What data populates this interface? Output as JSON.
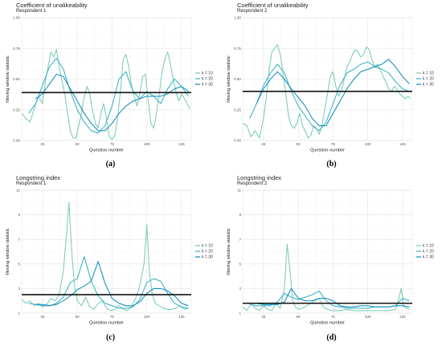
{
  "chart_data": [
    {
      "type": "line",
      "panel": "a",
      "caption": "(a)",
      "title": "Coefficient of unalikeability",
      "subtitle": "Respondent 1",
      "xlabel": "Question number",
      "ylabel": "Moving window statistic",
      "xlim": [
        10,
        132
      ],
      "ylim": [
        0,
        1
      ],
      "xticks": [
        25,
        50,
        75,
        100,
        125
      ],
      "yticks": [
        0,
        0.25,
        0.5,
        0.75,
        1
      ],
      "ytick_labels": [
        "0.00",
        "0.25",
        "0.50",
        "0.75",
        "1.00"
      ],
      "hline": 0.39,
      "legend_position": "right",
      "series": [
        {
          "name": "k = 10",
          "color": "#7fcdbb",
          "x": [
            10,
            13,
            16,
            19,
            22,
            25,
            27,
            29,
            31,
            33,
            35,
            37,
            39,
            41,
            43,
            45,
            47,
            49,
            51,
            53,
            55,
            57,
            59,
            61,
            63,
            65,
            67,
            69,
            71,
            73,
            75,
            77,
            79,
            81,
            83,
            85,
            87,
            89,
            91,
            93,
            95,
            97,
            99,
            101,
            103,
            105,
            107,
            109,
            111,
            113,
            115,
            117,
            119,
            121,
            123,
            125,
            127,
            129,
            131
          ],
          "y": [
            0.22,
            0.18,
            0.15,
            0.26,
            0.36,
            0.3,
            0.48,
            0.6,
            0.72,
            0.68,
            0.74,
            0.6,
            0.48,
            0.38,
            0.22,
            0.08,
            0.02,
            0.02,
            0.12,
            0.22,
            0.36,
            0.44,
            0.38,
            0.24,
            0.14,
            0.1,
            0.22,
            0.3,
            0.18,
            0.03,
            0.01,
            0.04,
            0.18,
            0.4,
            0.66,
            0.7,
            0.6,
            0.45,
            0.36,
            0.28,
            0.38,
            0.52,
            0.54,
            0.32,
            0.14,
            0.1,
            0.22,
            0.38,
            0.56,
            0.66,
            0.72,
            0.62,
            0.5,
            0.4,
            0.32,
            0.38,
            0.34,
            0.3,
            0.26
          ]
        },
        {
          "name": "k = 20",
          "color": "#41b6c4",
          "x": [
            15,
            20,
            25,
            30,
            35,
            40,
            45,
            50,
            55,
            60,
            65,
            70,
            75,
            80,
            85,
            90,
            95,
            100,
            105,
            110,
            115,
            120,
            125,
            130
          ],
          "y": [
            0.22,
            0.3,
            0.45,
            0.6,
            0.67,
            0.58,
            0.4,
            0.25,
            0.15,
            0.08,
            0.06,
            0.12,
            0.28,
            0.5,
            0.56,
            0.4,
            0.34,
            0.4,
            0.36,
            0.3,
            0.42,
            0.5,
            0.44,
            0.36
          ]
        },
        {
          "name": "k = 30",
          "color": "#1d91c0",
          "x": [
            20,
            25,
            30,
            35,
            40,
            45,
            50,
            55,
            60,
            65,
            70,
            75,
            80,
            85,
            90,
            95,
            100,
            105,
            110,
            115,
            120,
            125,
            130
          ],
          "y": [
            0.34,
            0.38,
            0.46,
            0.54,
            0.52,
            0.42,
            0.32,
            0.22,
            0.14,
            0.08,
            0.08,
            0.14,
            0.22,
            0.28,
            0.32,
            0.34,
            0.36,
            0.36,
            0.36,
            0.38,
            0.42,
            0.44,
            0.4
          ]
        }
      ]
    },
    {
      "type": "line",
      "panel": "b",
      "caption": "(b)",
      "title": "Coefficient of unalikeability",
      "subtitle": "Respondent 2",
      "xlabel": "Question number",
      "ylabel": "Moving window statistic",
      "xlim": [
        10,
        132
      ],
      "ylim": [
        0,
        1
      ],
      "xticks": [
        25,
        50,
        75,
        100,
        125
      ],
      "yticks": [
        0,
        0.25,
        0.5,
        0.75,
        1
      ],
      "ytick_labels": [
        "0.00",
        "0.25",
        "0.50",
        "0.75",
        "1.00"
      ],
      "hline": 0.4,
      "legend_position": "right",
      "series": [
        {
          "name": "k = 10",
          "color": "#7fcdbb",
          "x": [
            10,
            13,
            16,
            19,
            22,
            25,
            27,
            29,
            31,
            33,
            35,
            37,
            39,
            41,
            43,
            45,
            47,
            49,
            51,
            53,
            55,
            57,
            59,
            61,
            63,
            65,
            67,
            69,
            71,
            73,
            75,
            77,
            79,
            81,
            83,
            85,
            87,
            89,
            91,
            93,
            95,
            97,
            99,
            101,
            103,
            105,
            107,
            109,
            111,
            113,
            115,
            117,
            119,
            121,
            123,
            125,
            127,
            129,
            131
          ],
          "y": [
            0.14,
            0.12,
            0.03,
            0.08,
            0.02,
            0.18,
            0.35,
            0.58,
            0.72,
            0.75,
            0.78,
            0.7,
            0.55,
            0.38,
            0.2,
            0.12,
            0.1,
            0.14,
            0.22,
            0.12,
            0.08,
            0.02,
            0.04,
            0.12,
            0.1,
            0.05,
            0.12,
            0.25,
            0.38,
            0.52,
            0.56,
            0.44,
            0.36,
            0.4,
            0.5,
            0.6,
            0.64,
            0.7,
            0.74,
            0.72,
            0.68,
            0.7,
            0.76,
            0.74,
            0.66,
            0.6,
            0.62,
            0.58,
            0.52,
            0.48,
            0.42,
            0.4,
            0.44,
            0.42,
            0.38,
            0.36,
            0.34,
            0.36,
            0.34
          ]
        },
        {
          "name": "k = 20",
          "color": "#41b6c4",
          "x": [
            15,
            20,
            25,
            30,
            35,
            40,
            45,
            50,
            55,
            60,
            65,
            70,
            75,
            80,
            85,
            90,
            95,
            100,
            105,
            110,
            115,
            120,
            125,
            130
          ],
          "y": [
            0.18,
            0.3,
            0.45,
            0.55,
            0.62,
            0.55,
            0.4,
            0.28,
            0.2,
            0.12,
            0.08,
            0.15,
            0.3,
            0.45,
            0.55,
            0.58,
            0.62,
            0.64,
            0.6,
            0.58,
            0.55,
            0.48,
            0.42,
            0.4
          ]
        },
        {
          "name": "k = 30",
          "color": "#1d91c0",
          "x": [
            20,
            25,
            30,
            35,
            40,
            45,
            50,
            55,
            60,
            65,
            70,
            75,
            80,
            85,
            90,
            95,
            100,
            105,
            110,
            115,
            120,
            125,
            130
          ],
          "y": [
            0.3,
            0.42,
            0.5,
            0.56,
            0.5,
            0.42,
            0.35,
            0.28,
            0.18,
            0.12,
            0.12,
            0.22,
            0.32,
            0.42,
            0.5,
            0.56,
            0.58,
            0.6,
            0.62,
            0.66,
            0.6,
            0.52,
            0.46
          ]
        }
      ]
    },
    {
      "type": "line",
      "panel": "c",
      "caption": "(c)",
      "title": "Longstring index",
      "subtitle": "Respondent 1",
      "xlabel": "Question number",
      "ylabel": "Moving window statistic",
      "xlim": [
        10,
        132
      ],
      "ylim": [
        1,
        11
      ],
      "xticks": [
        25,
        50,
        75,
        100,
        125
      ],
      "yticks": [
        1,
        3,
        5,
        7,
        9,
        11
      ],
      "ytick_labels": [
        "1",
        "3",
        "5",
        "7",
        "9",
        "11"
      ],
      "hline": 2.5,
      "legend_position": "right",
      "series": [
        {
          "name": "k = 10",
          "color": "#7fcdbb",
          "x": [
            10,
            13,
            16,
            19,
            22,
            25,
            28,
            31,
            34,
            37,
            40,
            42,
            44,
            46,
            48,
            50,
            53,
            56,
            59,
            62,
            65,
            68,
            71,
            74,
            77,
            80,
            83,
            86,
            89,
            92,
            95,
            98,
            100,
            102,
            104,
            106,
            109,
            112,
            115,
            118,
            121,
            124,
            127,
            130
          ],
          "y": [
            2.1,
            1.8,
            2.0,
            1.6,
            1.8,
            1.5,
            1.7,
            2.2,
            2.0,
            2.5,
            4.5,
            7.0,
            10.0,
            6.0,
            3.2,
            2.0,
            1.6,
            2.3,
            1.5,
            1.3,
            1.8,
            2.0,
            1.4,
            1.2,
            1.3,
            1.6,
            1.3,
            1.2,
            1.5,
            2.2,
            3.2,
            5.0,
            8.2,
            4.2,
            2.5,
            1.8,
            1.6,
            1.4,
            1.3,
            1.3,
            1.4,
            1.6,
            1.3,
            1.4
          ]
        },
        {
          "name": "k = 20",
          "color": "#41b6c4",
          "x": [
            15,
            20,
            25,
            30,
            35,
            40,
            45,
            50,
            55,
            60,
            65,
            70,
            75,
            80,
            85,
            90,
            95,
            100,
            105,
            110,
            115,
            120,
            125,
            130
          ],
          "y": [
            1.8,
            1.7,
            1.6,
            1.6,
            1.8,
            2.3,
            3.5,
            3.8,
            5.6,
            3.6,
            2.4,
            1.8,
            1.6,
            1.4,
            1.4,
            1.5,
            2.1,
            3.5,
            3.8,
            3.6,
            2.6,
            1.8,
            1.5,
            1.4
          ]
        },
        {
          "name": "k = 30",
          "color": "#1d91c0",
          "x": [
            20,
            25,
            30,
            35,
            40,
            45,
            50,
            55,
            60,
            65,
            70,
            75,
            80,
            85,
            90,
            95,
            100,
            105,
            110,
            115,
            120,
            125,
            130
          ],
          "y": [
            1.7,
            1.7,
            1.6,
            1.7,
            2.0,
            2.4,
            2.9,
            3.2,
            3.6,
            5.2,
            3.4,
            2.2,
            1.8,
            1.6,
            1.6,
            1.9,
            2.6,
            3.0,
            3.0,
            2.8,
            2.4,
            1.8,
            1.6
          ]
        }
      ]
    },
    {
      "type": "line",
      "panel": "d",
      "caption": "(d)",
      "title": "Longstring index",
      "subtitle": "Respondent 2",
      "xlabel": "Question number",
      "ylabel": "Moving window statistic",
      "xlim": [
        10,
        132
      ],
      "ylim": [
        1,
        11
      ],
      "xticks": [
        25,
        50,
        75,
        100,
        125
      ],
      "yticks": [
        1,
        3,
        5,
        7,
        9,
        11
      ],
      "ytick_labels": [
        "1",
        "3",
        "5",
        "7",
        "9",
        "11"
      ],
      "hline": 1.8,
      "legend_position": "right",
      "series": [
        {
          "name": "k = 10",
          "color": "#7fcdbb",
          "x": [
            10,
            13,
            16,
            19,
            22,
            25,
            28,
            31,
            34,
            37,
            40,
            42,
            44,
            46,
            48,
            50,
            53,
            56,
            59,
            62,
            65,
            68,
            71,
            74,
            77,
            80,
            85,
            90,
            95,
            100,
            105,
            110,
            115,
            120,
            122,
            124,
            126,
            128,
            130
          ],
          "y": [
            1.5,
            1.2,
            1.8,
            1.4,
            1.2,
            1.6,
            1.3,
            1.2,
            1.8,
            1.4,
            3.0,
            6.6,
            4.5,
            2.0,
            1.5,
            1.3,
            1.4,
            1.6,
            1.8,
            2.0,
            2.2,
            1.5,
            1.3,
            1.2,
            1.2,
            1.2,
            1.3,
            1.2,
            1.2,
            1.2,
            1.2,
            1.2,
            1.2,
            1.3,
            2.0,
            3.0,
            1.5,
            1.4,
            1.3
          ]
        },
        {
          "name": "k = 20",
          "color": "#41b6c4",
          "x": [
            15,
            20,
            25,
            30,
            35,
            40,
            45,
            50,
            55,
            60,
            65,
            70,
            75,
            80,
            85,
            90,
            95,
            100,
            105,
            110,
            115,
            120,
            125,
            130
          ],
          "y": [
            1.7,
            1.6,
            1.6,
            1.6,
            1.9,
            2.6,
            2.3,
            2.1,
            2.3,
            2.5,
            2.8,
            2.0,
            1.6,
            1.5,
            1.4,
            1.4,
            1.4,
            1.4,
            1.5,
            1.5,
            1.5,
            1.6,
            2.2,
            2.0
          ]
        },
        {
          "name": "k = 30",
          "color": "#1d91c0",
          "x": [
            20,
            25,
            30,
            35,
            40,
            45,
            50,
            55,
            60,
            65,
            70,
            75,
            80,
            85,
            90,
            95,
            100,
            105,
            110,
            115,
            120,
            125,
            130
          ],
          "y": [
            1.8,
            1.7,
            1.7,
            1.7,
            1.9,
            3.0,
            2.2,
            2.0,
            2.0,
            2.2,
            2.2,
            2.0,
            1.6,
            1.5,
            1.5,
            1.6,
            1.6,
            1.5,
            1.5,
            1.5,
            1.6,
            1.6,
            1.5
          ]
        }
      ]
    }
  ]
}
